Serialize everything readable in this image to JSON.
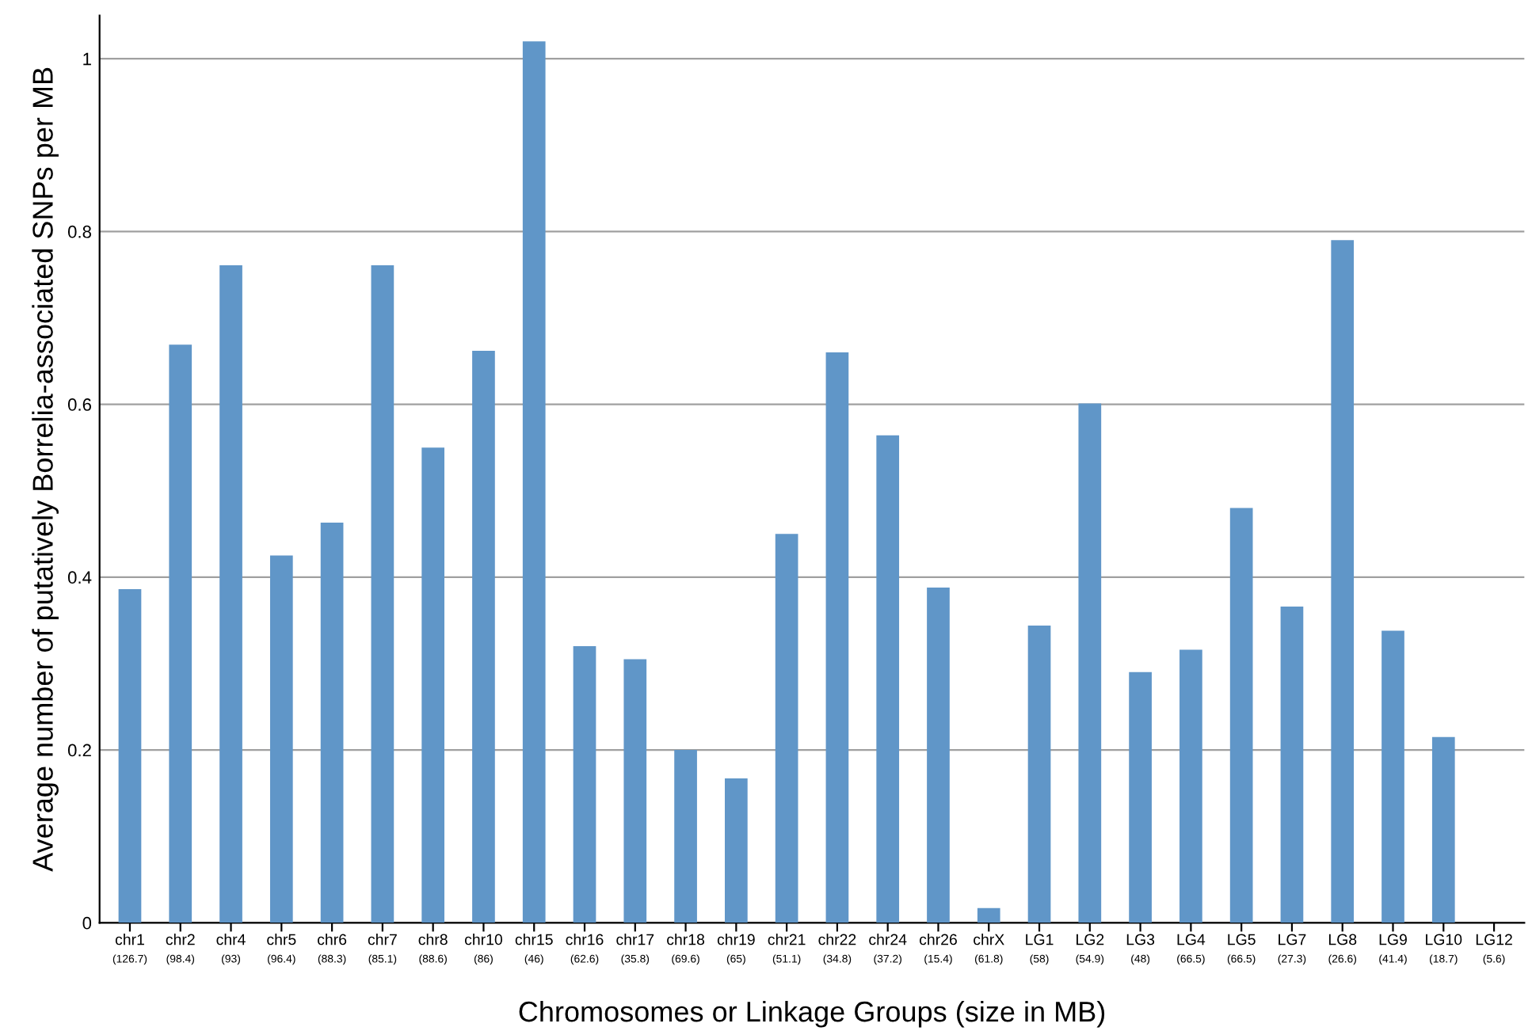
{
  "chart_data": {
    "type": "bar",
    "xlabel": "Chromosomes or Linkage Groups (size in MB)",
    "ylabel": "Average number of putatively Borrelia-associated SNPs per MB",
    "categories": [
      "chr1 (126.7)",
      "chr2 (98.4)",
      "chr4 (93)",
      "chr5 (96.4)",
      "chr6 (88.3)",
      "chr7 (85.1)",
      "chr8 (88.6)",
      "chr10 (86)",
      "chr15 (46)",
      "chr16 (62.6)",
      "chr17 (35.8)",
      "chr18 (69.6)",
      "chr19 (65)",
      "chr21 (51.1)",
      "chr22 (34.8)",
      "chr24 (37.2)",
      "chr26 (15.4)",
      "chrX (61.8)",
      "LG1 (58)",
      "LG2 (54.9)",
      "LG3 (48)",
      "LG4 (66.5)",
      "LG5 (66.5)",
      "LG7 (27.3)",
      "LG8 (26.6)",
      "LG9 (41.4)",
      "LG10 (18.7)",
      "LG12 (5.6)"
    ],
    "values": [
      0.386,
      0.669,
      0.761,
      0.425,
      0.463,
      0.761,
      0.55,
      0.662,
      1.02,
      0.32,
      0.305,
      0.2,
      0.167,
      0.45,
      0.66,
      0.564,
      0.388,
      0.017,
      0.344,
      0.601,
      0.29,
      0.316,
      0.48,
      0.366,
      0.79,
      0.338,
      0.215,
      0
    ],
    "color": "#6096c8",
    "ylim": [
      0,
      1.05
    ],
    "yticks": [
      0,
      0.2,
      0.4,
      0.6,
      0.8,
      1
    ],
    "grid": "y"
  }
}
